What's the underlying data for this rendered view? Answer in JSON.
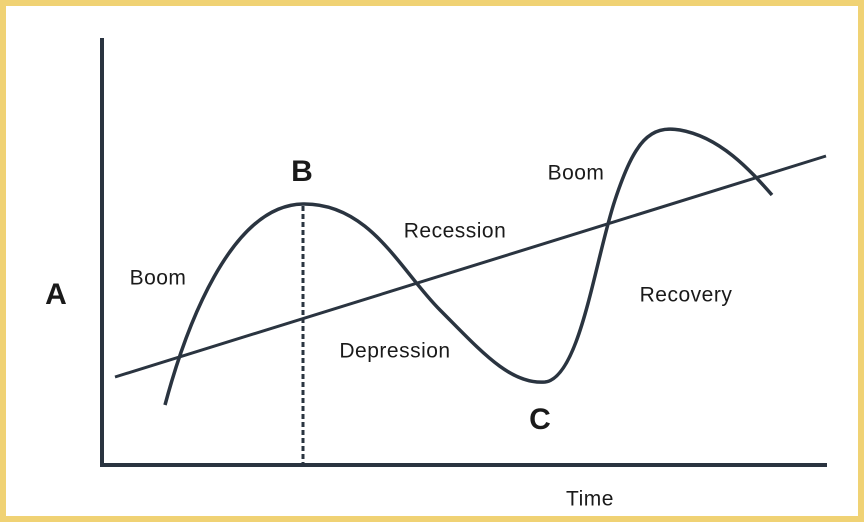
{
  "points": {
    "a": "A",
    "b": "B",
    "c": "C"
  },
  "phases": {
    "boom_rise": "Boom",
    "recession": "Recession",
    "depression": "Depression",
    "recovery": "Recovery",
    "boom_late": "Boom"
  },
  "axis": {
    "x_label": "Time"
  }
}
